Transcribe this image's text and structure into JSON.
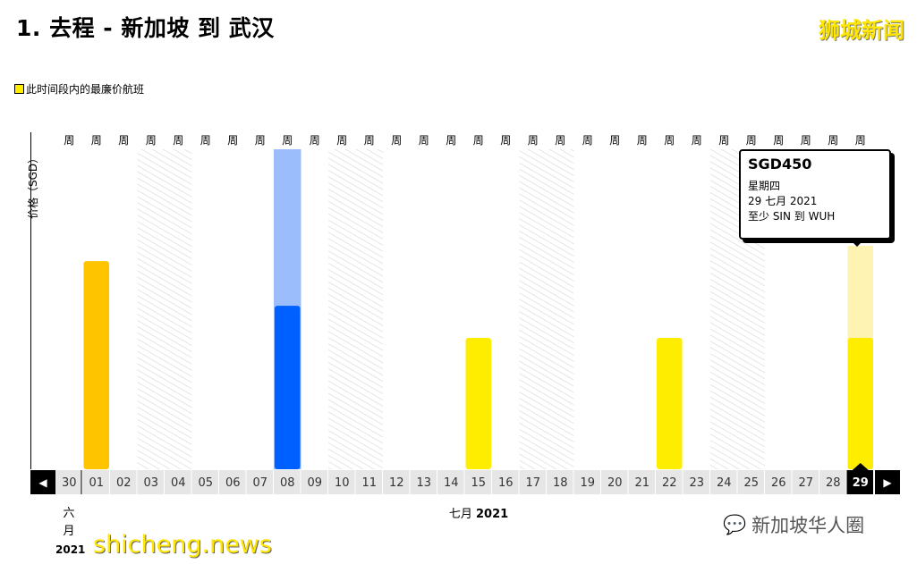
{
  "header": {
    "title": "1. 去程 - 新加坡 到 武汉",
    "brand": "狮城新闻"
  },
  "legend": {
    "label": "此时间段内的最廉价航班",
    "color": "#ffed00"
  },
  "chart_data": {
    "type": "bar",
    "ylabel": "价格（SGD）",
    "categories": [
      "30",
      "01",
      "02",
      "03",
      "04",
      "05",
      "06",
      "07",
      "08",
      "09",
      "10",
      "11",
      "12",
      "13",
      "14",
      "15",
      "16",
      "17",
      "18",
      "19",
      "20",
      "21",
      "22",
      "23",
      "24",
      "25",
      "26",
      "27",
      "28",
      "29"
    ],
    "week_label": "周",
    "values": [
      null,
      713,
      null,
      null,
      null,
      null,
      null,
      null,
      560,
      null,
      null,
      null,
      null,
      null,
      null,
      450,
      null,
      null,
      null,
      null,
      null,
      null,
      450,
      null,
      null,
      null,
      null,
      null,
      null,
      450
    ],
    "colors": {
      "default": "#ffed00",
      "01": "#ffc400",
      "08": "#0060ff",
      "08_highlight": "#9bbdfb",
      "29_highlight": "#fff3b3"
    },
    "weekend_hatched": [
      "03",
      "04",
      "10",
      "11",
      "17",
      "18",
      "24",
      "25"
    ],
    "selected": "29",
    "months": [
      {
        "name": "六",
        "suffix": "月",
        "year": "2021"
      },
      {
        "name": "七月",
        "year": "2021"
      }
    ]
  },
  "tooltip": {
    "price": "SGD450",
    "weekday": "星期四",
    "date": "29 七月 2021",
    "route": "至少 SIN 到 WUH"
  },
  "nav": {
    "prev": "◀",
    "next": "▶"
  },
  "watermarks": {
    "site": "shicheng.news",
    "wechat": "新加坡华人圈"
  }
}
